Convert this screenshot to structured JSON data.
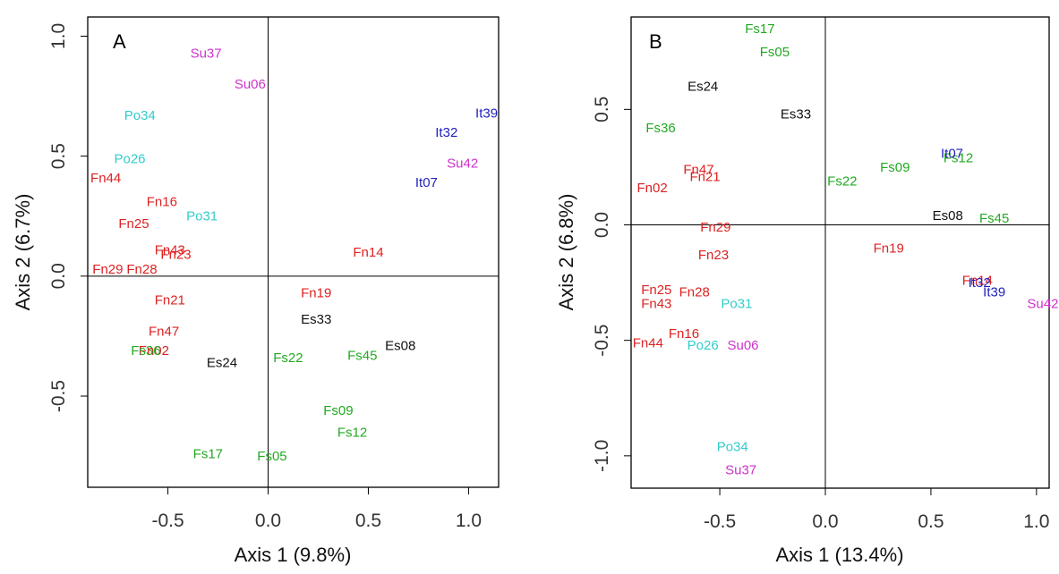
{
  "chart_data": [
    {
      "type": "scatter",
      "panel_label": "A",
      "xlabel": "Axis 1 (9.8%)",
      "ylabel": "Axis 2 (6.7%)",
      "xlim": [
        -0.9,
        1.15
      ],
      "ylim": [
        -0.88,
        1.08
      ],
      "xticks": [
        -0.5,
        0.0,
        0.5,
        1.0
      ],
      "xtick_labels": [
        "-0.5",
        "0.0",
        "0.5",
        "1.0"
      ],
      "yticks": [
        -0.5,
        0.0,
        0.5,
        1.0
      ],
      "ytick_labels": [
        "-0.5",
        "0.0",
        "0.5",
        "1.0"
      ],
      "grid": false,
      "points": [
        {
          "label": "Su37",
          "x": -0.31,
          "y": 0.93,
          "color": "#cc33cc"
        },
        {
          "label": "Su06",
          "x": -0.09,
          "y": 0.8,
          "color": "#cc33cc"
        },
        {
          "label": "Su42",
          "x": 0.97,
          "y": 0.47,
          "color": "#cc33cc"
        },
        {
          "label": "It39",
          "x": 1.09,
          "y": 0.68,
          "color": "#1f1fbf"
        },
        {
          "label": "It32",
          "x": 0.89,
          "y": 0.6,
          "color": "#1f1fbf"
        },
        {
          "label": "It07",
          "x": 0.79,
          "y": 0.39,
          "color": "#1f1fbf"
        },
        {
          "label": "Po34",
          "x": -0.64,
          "y": 0.67,
          "color": "#33cccc"
        },
        {
          "label": "Po26",
          "x": -0.69,
          "y": 0.49,
          "color": "#33cccc"
        },
        {
          "label": "Po31",
          "x": -0.33,
          "y": 0.25,
          "color": "#33cccc"
        },
        {
          "label": "Fn44",
          "x": -0.81,
          "y": 0.41,
          "color": "#dd2222"
        },
        {
          "label": "Fn16",
          "x": -0.53,
          "y": 0.31,
          "color": "#dd2222"
        },
        {
          "label": "Fn25",
          "x": -0.67,
          "y": 0.22,
          "color": "#dd2222"
        },
        {
          "label": "Fn43",
          "x": -0.49,
          "y": 0.11,
          "color": "#dd2222"
        },
        {
          "label": "Fn23",
          "x": -0.46,
          "y": 0.09,
          "color": "#dd2222"
        },
        {
          "label": "Fn29",
          "x": -0.8,
          "y": 0.03,
          "color": "#dd2222"
        },
        {
          "label": "Fn28",
          "x": -0.63,
          "y": 0.03,
          "color": "#dd2222"
        },
        {
          "label": "Fn21",
          "x": -0.49,
          "y": -0.1,
          "color": "#dd2222"
        },
        {
          "label": "Fn47",
          "x": -0.52,
          "y": -0.23,
          "color": "#dd2222"
        },
        {
          "label": "Fn02",
          "x": -0.57,
          "y": -0.31,
          "color": "#dd2222"
        },
        {
          "label": "Fn14",
          "x": 0.5,
          "y": 0.1,
          "color": "#dd2222"
        },
        {
          "label": "Fn19",
          "x": 0.24,
          "y": -0.07,
          "color": "#dd2222"
        },
        {
          "label": "Fs36",
          "x": -0.61,
          "y": -0.31,
          "color": "#22aa22"
        },
        {
          "label": "Fs22",
          "x": 0.1,
          "y": -0.34,
          "color": "#22aa22"
        },
        {
          "label": "Fs45",
          "x": 0.47,
          "y": -0.33,
          "color": "#22aa22"
        },
        {
          "label": "Fs09",
          "x": 0.35,
          "y": -0.56,
          "color": "#22aa22"
        },
        {
          "label": "Fs12",
          "x": 0.42,
          "y": -0.65,
          "color": "#22aa22"
        },
        {
          "label": "Fs17",
          "x": -0.3,
          "y": -0.74,
          "color": "#22aa22"
        },
        {
          "label": "Fs05",
          "x": 0.02,
          "y": -0.75,
          "color": "#22aa22"
        },
        {
          "label": "Es33",
          "x": 0.24,
          "y": -0.18,
          "color": "#111111"
        },
        {
          "label": "Es08",
          "x": 0.66,
          "y": -0.29,
          "color": "#111111"
        },
        {
          "label": "Es24",
          "x": -0.23,
          "y": -0.36,
          "color": "#111111"
        }
      ]
    },
    {
      "type": "scatter",
      "panel_label": "B",
      "xlabel": "Axis 1 (13.4%)",
      "ylabel": "Axis 2 (6.8%)",
      "xlim": [
        -0.92,
        1.06
      ],
      "ylim": [
        -1.14,
        0.9
      ],
      "xticks": [
        -0.5,
        0.0,
        0.5,
        1.0
      ],
      "xtick_labels": [
        "-0.5",
        "0.0",
        "0.5",
        "1.0"
      ],
      "yticks": [
        -1.0,
        -0.5,
        0.0,
        0.5
      ],
      "ytick_labels": [
        "-1.0",
        "-0.5",
        "0.0",
        "0.5"
      ],
      "grid": false,
      "points": [
        {
          "label": "Fs17",
          "x": -0.31,
          "y": 0.85,
          "color": "#22aa22"
        },
        {
          "label": "Fs05",
          "x": -0.24,
          "y": 0.75,
          "color": "#22aa22"
        },
        {
          "label": "Fs36",
          "x": -0.78,
          "y": 0.42,
          "color": "#22aa22"
        },
        {
          "label": "Fs22",
          "x": 0.08,
          "y": 0.19,
          "color": "#22aa22"
        },
        {
          "label": "Fs09",
          "x": 0.33,
          "y": 0.25,
          "color": "#22aa22"
        },
        {
          "label": "Fs12",
          "x": 0.63,
          "y": 0.29,
          "color": "#22aa22"
        },
        {
          "label": "Fs45",
          "x": 0.8,
          "y": 0.03,
          "color": "#22aa22"
        },
        {
          "label": "Es24",
          "x": -0.58,
          "y": 0.6,
          "color": "#111111"
        },
        {
          "label": "Es33",
          "x": -0.14,
          "y": 0.48,
          "color": "#111111"
        },
        {
          "label": "Es08",
          "x": 0.58,
          "y": 0.04,
          "color": "#111111"
        },
        {
          "label": "Fn47",
          "x": -0.6,
          "y": 0.24,
          "color": "#dd2222"
        },
        {
          "label": "Fn21",
          "x": -0.57,
          "y": 0.21,
          "color": "#dd2222"
        },
        {
          "label": "Fn02",
          "x": -0.82,
          "y": 0.16,
          "color": "#dd2222"
        },
        {
          "label": "Fn29",
          "x": -0.52,
          "y": -0.01,
          "color": "#dd2222"
        },
        {
          "label": "Fn23",
          "x": -0.53,
          "y": -0.13,
          "color": "#dd2222"
        },
        {
          "label": "Fn19",
          "x": 0.3,
          "y": -0.1,
          "color": "#dd2222"
        },
        {
          "label": "Fn25",
          "x": -0.8,
          "y": -0.28,
          "color": "#dd2222"
        },
        {
          "label": "Fn28",
          "x": -0.62,
          "y": -0.29,
          "color": "#dd2222"
        },
        {
          "label": "Fn43",
          "x": -0.8,
          "y": -0.34,
          "color": "#dd2222"
        },
        {
          "label": "Fn16",
          "x": -0.67,
          "y": -0.47,
          "color": "#dd2222"
        },
        {
          "label": "Fn44",
          "x": -0.84,
          "y": -0.51,
          "color": "#dd2222"
        },
        {
          "label": "Fn14",
          "x": 0.72,
          "y": -0.24,
          "color": "#dd2222"
        },
        {
          "label": "It07",
          "x": 0.6,
          "y": 0.31,
          "color": "#1f1fbf"
        },
        {
          "label": "It32",
          "x": 0.73,
          "y": -0.25,
          "color": "#1f1fbf"
        },
        {
          "label": "It39",
          "x": 0.8,
          "y": -0.29,
          "color": "#1f1fbf"
        },
        {
          "label": "Su42",
          "x": 1.03,
          "y": -0.34,
          "color": "#cc33cc"
        },
        {
          "label": "Su06",
          "x": -0.39,
          "y": -0.52,
          "color": "#cc33cc"
        },
        {
          "label": "Su37",
          "x": -0.4,
          "y": -1.06,
          "color": "#cc33cc"
        },
        {
          "label": "Po31",
          "x": -0.42,
          "y": -0.34,
          "color": "#33cccc"
        },
        {
          "label": "Po26",
          "x": -0.58,
          "y": -0.52,
          "color": "#33cccc"
        },
        {
          "label": "Po34",
          "x": -0.44,
          "y": -0.96,
          "color": "#33cccc"
        }
      ]
    }
  ]
}
